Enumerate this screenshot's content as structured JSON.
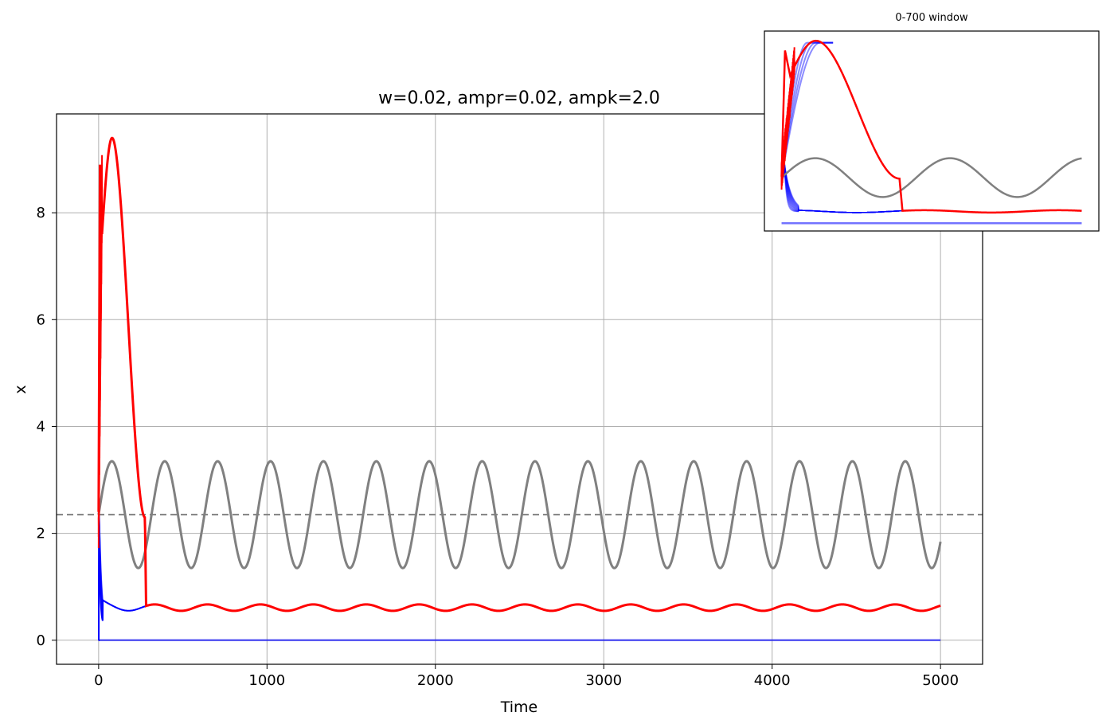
{
  "chart_data": [
    {
      "type": "line",
      "title": "w=0.02, ampr=0.02, ampk=2.0",
      "xlabel": "Time",
      "ylabel": "x",
      "xlim": [
        -250,
        5250
      ],
      "ylim": [
        -0.45,
        9.85
      ],
      "xticks": [
        0,
        1000,
        2000,
        3000,
        4000,
        5000
      ],
      "xtick_labels": [
        "0",
        "1000",
        "2000",
        "3000",
        "4000",
        "5000"
      ],
      "yticks": [
        0,
        2,
        4,
        6,
        8
      ],
      "ytick_labels": [
        "0",
        "2",
        "4",
        "6",
        "8"
      ],
      "grid": true,
      "colors": {
        "red": "#ff0000",
        "blue": "#0000ff",
        "gray": "#808080"
      },
      "series": [
        {
          "color": "#808080",
          "style": "solid",
          "description": "sinusoid",
          "mean": 2.35,
          "amplitude": 1.0,
          "period": 314.16,
          "t_range": [
            0,
            5000
          ]
        },
        {
          "color": "#808080",
          "style": "dashed",
          "y": 2.35
        },
        {
          "color": "#ff0000",
          "style": "solid",
          "description": "red trajectories",
          "peak_x": 80,
          "peak_y": 9.4,
          "drop_x": 280,
          "steady_mean": 0.61,
          "steady_amplitude": 0.06
        },
        {
          "color": "#0000ff",
          "style": "solid",
          "description": "blue trajectories",
          "steady_mean": 0.61,
          "steady_amplitude": 0.06
        },
        {
          "color": "#0000ff",
          "style": "solid",
          "alpha": 0.6,
          "y": 0.0
        }
      ]
    },
    {
      "type": "line",
      "title": "0-700 window",
      "xlim": [
        0,
        700
      ],
      "ticks_visible": false
    }
  ]
}
